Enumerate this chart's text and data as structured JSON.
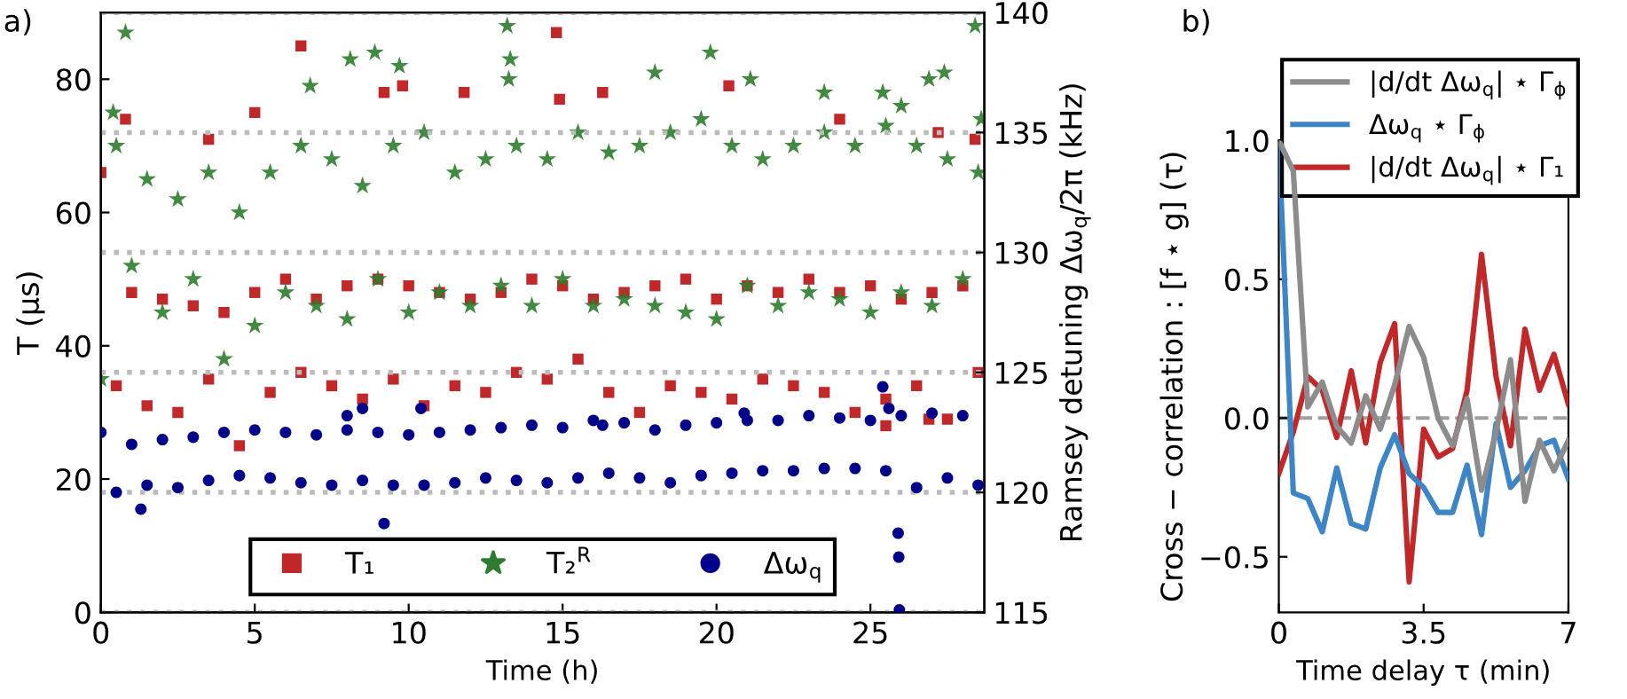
{
  "chart_data": [
    {
      "type": "scatter",
      "title": "a)",
      "xlabel": "Time (h)",
      "ylabel": "T (μs)",
      "y2label": "Ramsey detuning Δω$_{q}$/2π (kHz)",
      "xlim": [
        0,
        28.7
      ],
      "xticks": [
        0,
        5,
        10,
        15,
        20,
        25
      ],
      "ylim": [
        0,
        90
      ],
      "yticks": [
        0,
        20,
        40,
        60,
        80
      ],
      "y2lim": [
        115,
        140
      ],
      "y2ticks": [
        115,
        120,
        125,
        130,
        135,
        140
      ],
      "grid": "y",
      "legend": "bottom",
      "series": [
        {
          "name": "T₁",
          "color": "#c0282a",
          "marker": "square",
          "x": [
            0,
            0.5,
            1,
            1.5,
            2,
            2.5,
            3,
            3.5,
            4,
            4.5,
            5,
            5.5,
            6,
            6.5,
            7,
            7.5,
            8,
            8.5,
            9,
            9.5,
            10,
            10.5,
            11,
            11.5,
            12,
            12.5,
            13,
            13.5,
            14,
            14.5,
            15,
            15.5,
            16,
            16.5,
            17,
            17.5,
            18,
            18.5,
            19,
            19.5,
            20,
            20.5,
            21,
            21.5,
            22,
            22.5,
            23,
            23.5,
            24,
            24.5,
            25,
            25.5,
            26,
            26.5,
            27,
            27.5,
            28,
            28.5,
            0.8,
            3.5,
            5,
            6.5,
            9.2,
            9.8,
            11.8,
            14.8,
            14.9,
            16.3,
            20.4,
            24,
            27.2,
            28.4,
            26.9,
            25.5
          ],
          "values": [
            66,
            34,
            48,
            31,
            47,
            30,
            46,
            35,
            45,
            25,
            48,
            33,
            50,
            36,
            47,
            34,
            49,
            32,
            50,
            35,
            49,
            31,
            48,
            34,
            47,
            33,
            48,
            36,
            50,
            35,
            49,
            38,
            47,
            33,
            48,
            30,
            49,
            34,
            50,
            33,
            47,
            32,
            49,
            35,
            48,
            34,
            50,
            33,
            48,
            30,
            49,
            32,
            47,
            34,
            48,
            29,
            49,
            36,
            74,
            71,
            75,
            85,
            78,
            79,
            78,
            87,
            77,
            78,
            79,
            74,
            72,
            71,
            29,
            28
          ]
        },
        {
          "name": "T₂$^{R}$",
          "color": "#2e7d2e",
          "marker": "star",
          "x": [
            0,
            0.5,
            1,
            1.5,
            2,
            2.5,
            3,
            3.5,
            4,
            4.5,
            5,
            5.5,
            6,
            6.5,
            7,
            7.5,
            8,
            8.5,
            9,
            9.5,
            10,
            10.5,
            11,
            11.5,
            12,
            12.5,
            13,
            13.5,
            14,
            14.5,
            15,
            15.5,
            16,
            16.5,
            17,
            17.5,
            18,
            18.5,
            19,
            19.5,
            20,
            20.5,
            21,
            21.5,
            22,
            22.5,
            23,
            23.5,
            24,
            24.5,
            25,
            25.5,
            26,
            26.5,
            27,
            27.5,
            28,
            28.5,
            0.8,
            0.4,
            6.8,
            8.1,
            8.9,
            9.7,
            13.2,
            13.3,
            13.25,
            18,
            19.8,
            21.1,
            23.5,
            25.4,
            26,
            26.9,
            27.4,
            28.4,
            28.6
          ],
          "values": [
            35,
            70,
            52,
            65,
            45,
            62,
            50,
            66,
            38,
            60,
            43,
            66,
            48,
            70,
            46,
            68,
            44,
            64,
            50,
            70,
            45,
            72,
            48,
            66,
            46,
            68,
            49,
            70,
            46,
            68,
            50,
            72,
            46,
            69,
            47,
            70,
            46,
            72,
            45,
            74,
            44,
            70,
            49,
            68,
            46,
            70,
            48,
            72,
            47,
            70,
            45,
            73,
            48,
            70,
            46,
            68,
            50,
            66,
            87,
            75,
            79,
            83,
            84,
            82,
            88,
            83,
            80,
            81,
            84,
            80,
            78,
            78,
            76,
            80,
            81,
            88,
            74
          ]
        },
        {
          "name": "Δω$_{q}$",
          "color": "#00008b",
          "marker": "circle",
          "axis": "y2",
          "x": [
            0,
            0.5,
            1,
            1.5,
            2,
            2.5,
            3,
            3.5,
            4,
            4.5,
            5,
            5.5,
            6,
            6.5,
            7,
            7.5,
            8,
            8.5,
            9,
            9.5,
            10,
            10.5,
            11,
            11.5,
            12,
            12.5,
            13,
            13.5,
            14,
            14.5,
            15,
            15.5,
            16,
            16.5,
            17,
            17.5,
            18,
            18.5,
            19,
            19.5,
            20,
            20.5,
            21,
            21.5,
            22,
            22.5,
            23,
            23.5,
            24,
            24.5,
            25,
            25.5,
            26,
            26.5,
            27,
            27.5,
            28,
            28.5,
            1.3,
            8,
            8.5,
            9.2,
            10.4,
            16.3,
            20.9,
            25.4,
            25.6,
            25.9,
            25.92,
            25.94
          ],
          "values": [
            122.5,
            120,
            122,
            120.3,
            122.2,
            120.2,
            122.3,
            120.5,
            122.5,
            120.7,
            122.6,
            120.6,
            122.5,
            120.4,
            122.4,
            120.3,
            122.6,
            120.5,
            122.5,
            120.3,
            122.4,
            120.3,
            122.5,
            120.4,
            122.6,
            120.6,
            122.7,
            120.5,
            122.8,
            120.4,
            122.7,
            120.6,
            123,
            120.8,
            122.9,
            120.6,
            122.6,
            120.4,
            122.8,
            120.7,
            122.9,
            120.8,
            123,
            120.9,
            123,
            120.9,
            123.2,
            121,
            123.1,
            121,
            123,
            120.9,
            123.2,
            120.2,
            123.3,
            120.6,
            123.2,
            120.3,
            119.3,
            123.2,
            123.5,
            118.7,
            123.5,
            122.8,
            123.3,
            124.4,
            123.5,
            118.3,
            117.3,
            115.1
          ]
        }
      ]
    },
    {
      "type": "line",
      "title": "b)",
      "xlabel": "Time delay τ (min)",
      "ylabel": "Cross − correlation : [f ⋆ g] (τ)",
      "xlim": [
        0,
        7
      ],
      "xticks": [
        0,
        3.5,
        7
      ],
      "ylim": [
        -0.7,
        1.0
      ],
      "yticks": [
        {
          "value": -0.5,
          "label": "−0.5"
        },
        {
          "value": 0,
          "label": "0.0"
        },
        0.5,
        {
          "value": 1,
          "label": "1.0"
        }
      ],
      "legend": "top right",
      "line_style": "solid",
      "marker": "none",
      "ref_lines": [
        {
          "axis": "y",
          "value": 0,
          "color": "#a0a0a0",
          "line_style": "dashed"
        }
      ],
      "x": [
        0,
        0.35,
        0.7,
        1.05,
        1.4,
        1.75,
        2.1,
        2.45,
        2.8,
        3.15,
        3.5,
        3.85,
        4.2,
        4.55,
        4.9,
        5.25,
        5.6,
        5.95,
        6.3,
        6.65,
        7.0
      ],
      "series": [
        {
          "name": "|d/dt Δω$_{q}$| ⋆ Γ$_{ϕ}$",
          "color": "#8c8c8c",
          "values": [
            1.0,
            0.89,
            0.04,
            0.13,
            -0.03,
            -0.09,
            0.08,
            -0.04,
            0.12,
            0.33,
            0.22,
            0.0,
            -0.1,
            0.07,
            -0.26,
            -0.05,
            0.21,
            -0.3,
            -0.08,
            -0.19,
            -0.08
          ]
        },
        {
          "name": "Δω$_{q}$ ⋆ Γ$_{ϕ}$",
          "color": "#3d85c6",
          "values": [
            1.0,
            -0.27,
            -0.29,
            -0.41,
            -0.18,
            -0.38,
            -0.4,
            -0.18,
            -0.06,
            -0.2,
            -0.25,
            -0.34,
            -0.34,
            -0.17,
            -0.42,
            -0.02,
            -0.25,
            -0.19,
            -0.1,
            -0.08,
            -0.22
          ]
        },
        {
          "name": "|d/dt Δω$_{q}$| ⋆ Γ₁",
          "color": "#c0282a",
          "values": [
            -0.2,
            -0.05,
            0.15,
            0.1,
            -0.07,
            0.17,
            -0.09,
            0.2,
            0.34,
            -0.59,
            -0.04,
            -0.14,
            -0.11,
            0.1,
            0.59,
            0.15,
            -0.1,
            0.32,
            0.1,
            0.23,
            0.05
          ]
        }
      ]
    }
  ]
}
